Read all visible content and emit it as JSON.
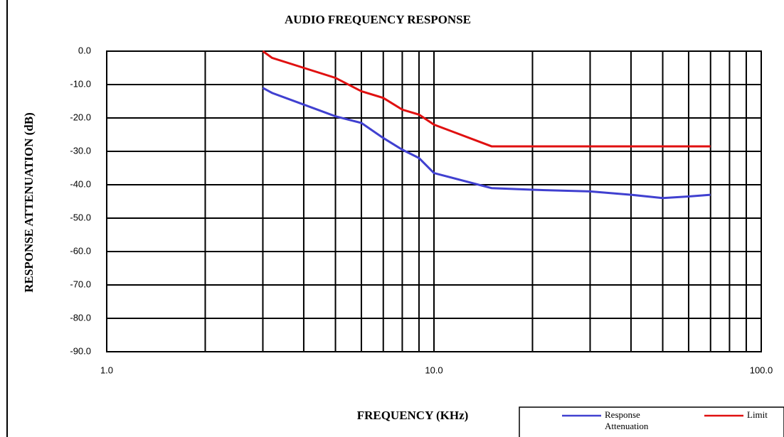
{
  "chart_data": {
    "type": "line",
    "title": "AUDIO FREQUENCY RESPONSE",
    "xlabel": "FREQUENCY (KHz)",
    "ylabel": "RESPONSE ATTENUATION (dB)",
    "xscale": "log",
    "grid": true,
    "legend": "bottom-right",
    "xlim": [
      1,
      100
    ],
    "xticks": [
      {
        "value": 1,
        "label": "1.0"
      },
      {
        "value": 10,
        "label": "10.0"
      },
      {
        "value": 100,
        "label": "100.0"
      }
    ],
    "ylim": [
      -90,
      0
    ],
    "yticks": [
      {
        "value": 0,
        "label": "0.0"
      },
      {
        "value": -10,
        "label": "-10.0"
      },
      {
        "value": -20,
        "label": "-20.0"
      },
      {
        "value": -30,
        "label": "-30.0"
      },
      {
        "value": -40,
        "label": "-40.0"
      },
      {
        "value": -50,
        "label": "-50.0"
      },
      {
        "value": -60,
        "label": "-60.0"
      },
      {
        "value": -70,
        "label": "-70.0"
      },
      {
        "value": -80,
        "label": "-80.0"
      },
      {
        "value": -90,
        "label": "-90.0"
      }
    ],
    "series": [
      {
        "name": "Response Attenuation",
        "color": "#4040d0",
        "x": [
          3,
          3.2,
          4,
          5,
          6,
          7,
          8,
          9,
          10,
          15,
          20,
          30,
          40,
          50,
          60,
          70
        ],
        "values": [
          -11,
          -12.5,
          -16,
          -19.5,
          -21.5,
          -26,
          -29.5,
          -32,
          -36.5,
          -41,
          -41.5,
          -42,
          -43,
          -44,
          -43.5,
          -43
        ]
      },
      {
        "name": "Limit",
        "color": "#e01010",
        "x": [
          3,
          3.2,
          4,
          5,
          6,
          7,
          8,
          9,
          10,
          15,
          70
        ],
        "values": [
          0,
          -2,
          -5,
          -8,
          -12,
          -14,
          -17.5,
          -19,
          -22,
          -28.5,
          -28.5
        ]
      }
    ]
  }
}
